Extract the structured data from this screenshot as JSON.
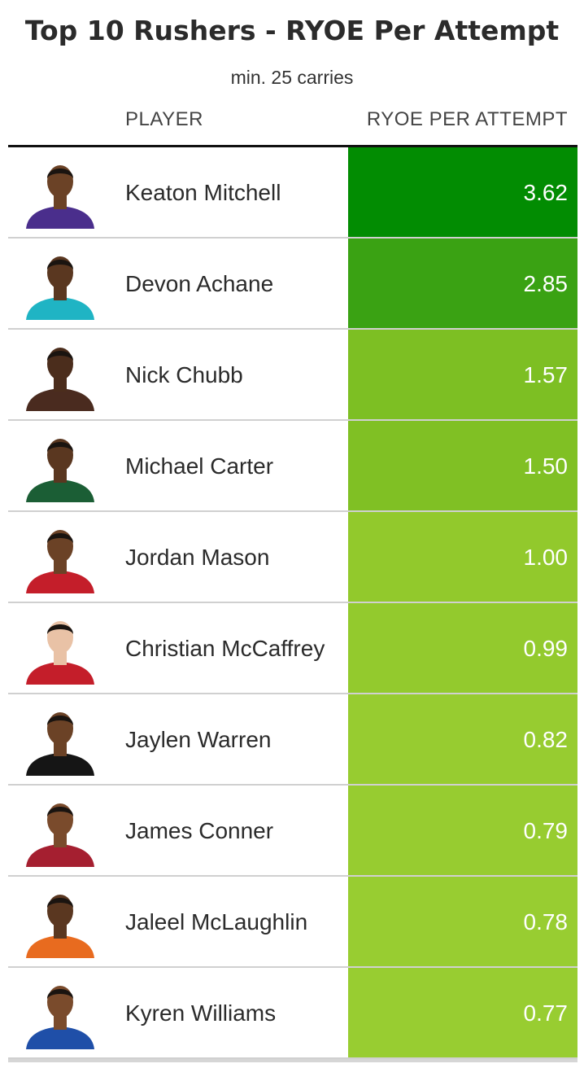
{
  "chart_data": {
    "type": "table",
    "title": "Top 10 Rushers - RYOE Per Attempt",
    "subtitle": "min. 25 carries",
    "columns": [
      "PLAYER",
      "RYOE PER ATTEMPT"
    ],
    "rows": [
      {
        "player": "Keaton Mitchell",
        "value": "3.62",
        "color": "#028c02",
        "jersey": "#4a2e8c",
        "skin": "#6b4226"
      },
      {
        "player": "Devon Achane",
        "value": "2.85",
        "color": "#3aa213",
        "jersey": "#1fb4c4",
        "skin": "#5a3720"
      },
      {
        "player": "Nick Chubb",
        "value": "1.57",
        "color": "#7dbf23",
        "jersey": "#4a2b1f",
        "skin": "#4b2d1c"
      },
      {
        "player": "Michael Carter",
        "value": "1.50",
        "color": "#80c024",
        "jersey": "#1b5e35",
        "skin": "#5a3720"
      },
      {
        "player": "Jordan Mason",
        "value": "1.00",
        "color": "#92c92c",
        "jersey": "#c41e2a",
        "skin": "#6b4226"
      },
      {
        "player": "Christian McCaffrey",
        "value": "0.99",
        "color": "#93ca2d",
        "jersey": "#c41e2a",
        "skin": "#e9c2a6"
      },
      {
        "player": "Jaylen Warren",
        "value": "0.82",
        "color": "#97cc30",
        "jersey": "#151515",
        "skin": "#6b4226"
      },
      {
        "player": "James Conner",
        "value": "0.79",
        "color": "#97cc30",
        "jersey": "#a51f30",
        "skin": "#7a4b2c"
      },
      {
        "player": "Jaleel McLaughlin",
        "value": "0.78",
        "color": "#98cd31",
        "jersey": "#e86b1f",
        "skin": "#5a3720"
      },
      {
        "player": "Kyren Williams",
        "value": "0.77",
        "color": "#98cd31",
        "jersey": "#1f4fa8",
        "skin": "#7a4b2c"
      }
    ]
  }
}
